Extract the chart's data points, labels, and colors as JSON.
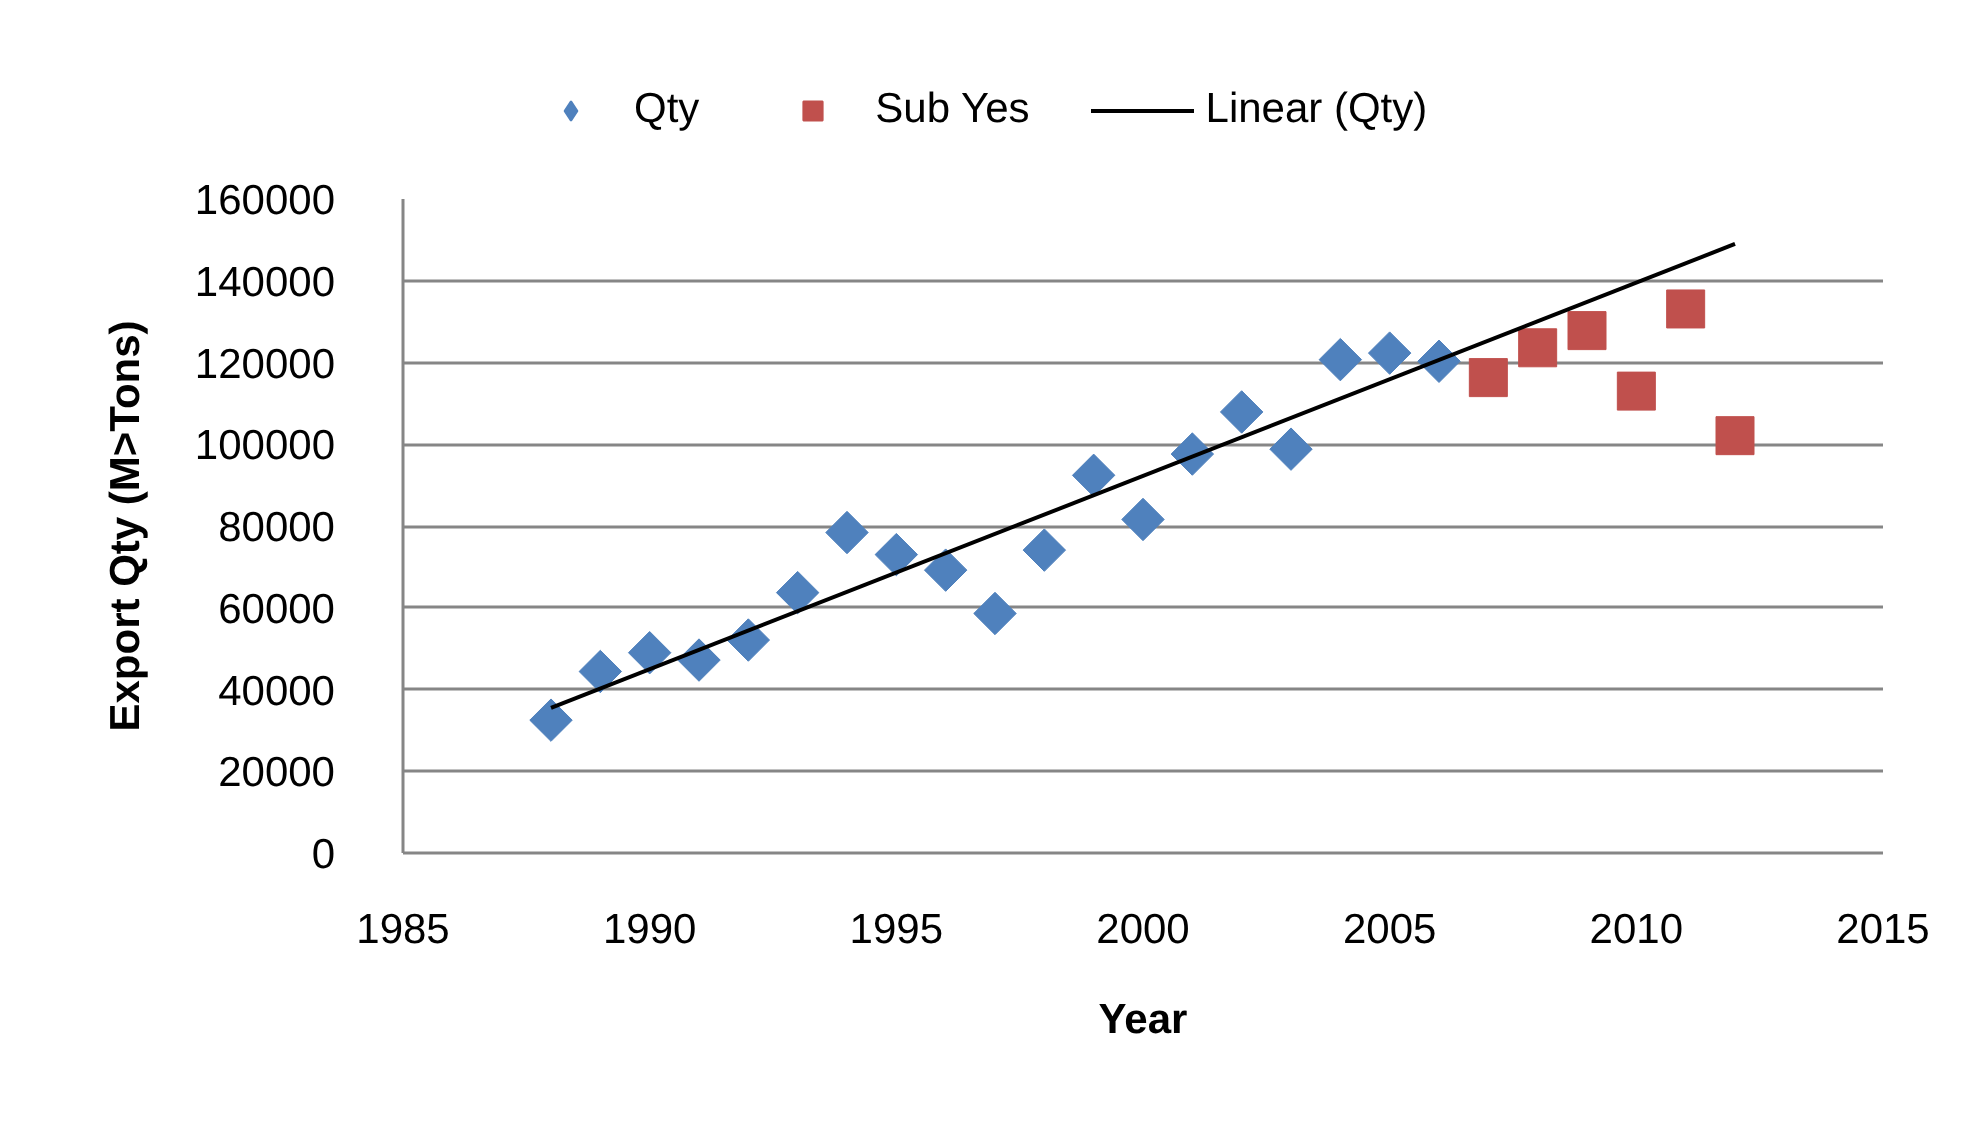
{
  "chart_data": {
    "type": "scatter",
    "xlabel": "Year",
    "ylabel": "Export Qty (M>Tons)",
    "xlim": [
      1985,
      2015
    ],
    "ylim": [
      0,
      160000
    ],
    "xticks": [
      1985,
      1990,
      1995,
      2000,
      2005,
      2010,
      2015
    ],
    "yticks": [
      0,
      20000,
      40000,
      60000,
      80000,
      100000,
      120000,
      140000,
      160000
    ],
    "grid": "y",
    "legend": "top",
    "series": [
      {
        "name": "Qty",
        "color": "#4f81bd",
        "marker": "diamond",
        "x": [
          1988,
          1989,
          1990,
          1991,
          1992,
          1993,
          1994,
          1995,
          1996,
          1997,
          1998,
          1999,
          2000,
          2001,
          2002,
          2003,
          2004,
          2005,
          2006
        ],
        "values": [
          32500,
          44400,
          49000,
          47200,
          52100,
          63700,
          78400,
          73000,
          69200,
          58600,
          74100,
          92400,
          81600,
          97600,
          107900,
          98800,
          120700,
          122300,
          120300
        ]
      },
      {
        "name": "Sub Yes",
        "color": "#c0504d",
        "marker": "square",
        "x": [
          2007,
          2008,
          2009,
          2010,
          2011,
          2012
        ],
        "values": [
          116300,
          123600,
          127800,
          113000,
          133100,
          102100
        ]
      },
      {
        "name": "Linear (Qty)",
        "type": "line",
        "color": "#000000",
        "marker": "none",
        "line_style": "solid",
        "x": [
          1988,
          2012
        ],
        "values": [
          35500,
          149000
        ]
      }
    ]
  }
}
